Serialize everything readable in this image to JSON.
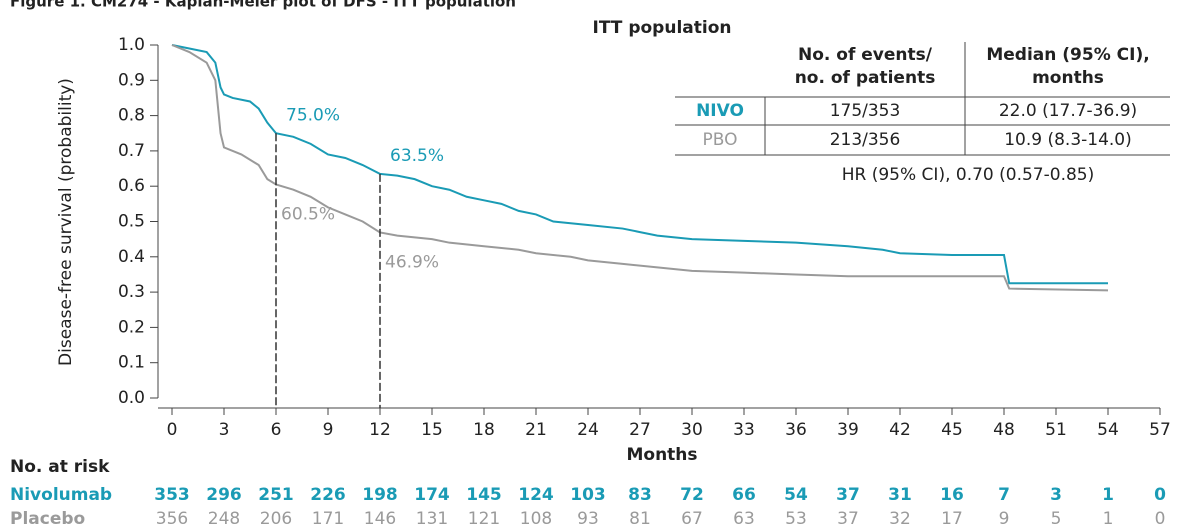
{
  "chart_data": {
    "type": "line",
    "title": "Figure 1. CM274 - Kaplan-Meier plot of DFS - ITT population",
    "y_label": "Disease-free survival (probability)",
    "x_label": "Months",
    "xlim": [
      0,
      57
    ],
    "xticks": [
      0,
      3,
      6,
      9,
      12,
      15,
      18,
      21,
      24,
      27,
      30,
      33,
      36,
      39,
      42,
      45,
      48,
      51,
      54,
      57
    ],
    "ylim": [
      0,
      1.0
    ],
    "yticks": [
      {
        "value": 0,
        "label": "0.0"
      },
      0.1,
      0.2,
      0.3,
      0.4,
      0.5,
      0.6,
      0.7,
      0.8,
      0.9,
      {
        "value": 1.0,
        "label": "1.0"
      }
    ],
    "series": [
      {
        "name": "NIVO",
        "color": "#1a9bb5",
        "x": [
          0,
          0.5,
          1,
          2,
          2.5,
          2.8,
          3,
          3.5,
          4.5,
          5,
          5.5,
          6,
          7,
          8,
          9,
          10,
          11,
          12,
          13,
          14,
          15,
          16,
          17,
          18,
          19,
          20,
          21,
          22,
          24,
          26,
          27,
          28,
          29,
          30,
          33,
          36,
          39,
          41,
          42,
          45,
          48,
          48.3,
          54
        ],
        "values": [
          1.0,
          0.995,
          0.99,
          0.98,
          0.95,
          0.88,
          0.86,
          0.85,
          0.84,
          0.82,
          0.78,
          0.75,
          0.74,
          0.72,
          0.69,
          0.68,
          0.66,
          0.635,
          0.63,
          0.62,
          0.6,
          0.59,
          0.57,
          0.56,
          0.55,
          0.53,
          0.52,
          0.5,
          0.49,
          0.48,
          0.47,
          0.46,
          0.455,
          0.45,
          0.445,
          0.44,
          0.43,
          0.42,
          0.41,
          0.405,
          0.405,
          0.325,
          0.325
        ]
      },
      {
        "name": "PBO",
        "color": "#9a9a9a",
        "x": [
          0,
          1,
          2,
          2.5,
          2.8,
          3,
          4,
          5,
          5.5,
          6,
          7,
          8,
          9,
          10,
          11,
          12,
          13,
          15,
          16,
          18,
          20,
          21,
          23,
          24,
          26,
          28,
          30,
          33,
          36,
          39,
          45,
          48,
          48.3,
          54
        ],
        "values": [
          1.0,
          0.98,
          0.95,
          0.9,
          0.75,
          0.71,
          0.69,
          0.66,
          0.62,
          0.605,
          0.59,
          0.57,
          0.54,
          0.52,
          0.5,
          0.469,
          0.46,
          0.45,
          0.44,
          0.43,
          0.42,
          0.41,
          0.4,
          0.39,
          0.38,
          0.37,
          0.36,
          0.355,
          0.35,
          0.345,
          0.345,
          0.345,
          0.31,
          0.305
        ]
      }
    ],
    "annotations": [
      {
        "series": 0,
        "x": 6,
        "y": 0.75,
        "label": "75.0%"
      },
      {
        "series": 0,
        "x": 12,
        "y": 0.635,
        "label": "63.5%"
      },
      {
        "series": 1,
        "x": 6,
        "y": 0.605,
        "label": "60.5%"
      },
      {
        "series": 1,
        "x": 12,
        "y": 0.469,
        "label": "46.9%"
      }
    ],
    "summary_table": {
      "title": "ITT population",
      "headers": [
        "No. of events/",
        "no. of patients",
        "Median (95% CI),",
        "months"
      ],
      "rows": [
        [
          "NIVO",
          "175/353",
          "22.0 (17.7-36.9)"
        ],
        [
          "PBO",
          "213/356",
          "10.9 (8.3-14.0)"
        ]
      ],
      "hr": "HR (95% CI), 0.70 (0.57-0.85)"
    },
    "risk_table": {
      "title": "No. at risk",
      "rows": [
        {
          "name": "Nivolumab",
          "color": "#1a9bb5",
          "values": [
            353,
            296,
            251,
            226,
            198,
            174,
            145,
            124,
            103,
            83,
            72,
            66,
            54,
            37,
            31,
            16,
            7,
            3,
            1,
            0
          ]
        },
        {
          "name": "Placebo",
          "color": "#9a9a9a",
          "values": [
            356,
            248,
            206,
            171,
            146,
            131,
            121,
            108,
            93,
            81,
            67,
            63,
            53,
            37,
            32,
            17,
            9,
            5,
            1,
            0
          ]
        }
      ]
    }
  }
}
